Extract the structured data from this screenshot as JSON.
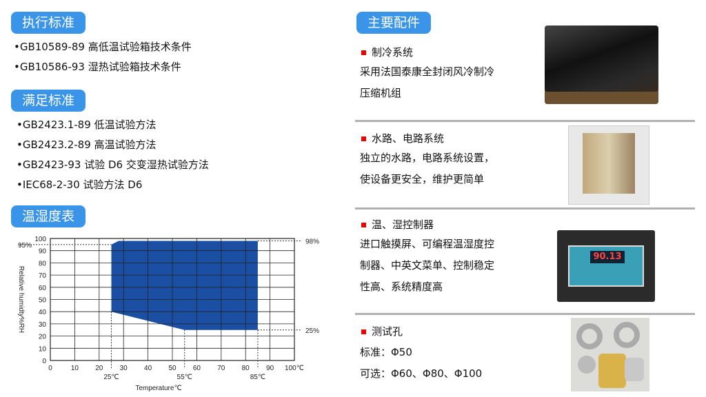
{
  "left": {
    "standard_exec": {
      "title": "执行标准",
      "items": [
        "•GB10589-89 高低温试验箱技术条件",
        "•GB10586-93 湿热试验箱技术条件"
      ]
    },
    "standard_meet": {
      "title": "满足标准",
      "items": [
        "•GB2423.1-89 低温试验方法",
        "•GB2423.2-89 高温试验方法",
        "•GB2423-93 试验 D6 交变湿热试验方法",
        "•IEC68-2-30 试验方法 D6"
      ]
    },
    "chart_section": {
      "title": "温湿度表"
    }
  },
  "right": {
    "title": "主要配件",
    "sections": [
      {
        "heading": "制冷系统",
        "lines": [
          "采用法国泰康全封闭风冷制冷",
          "压缩机组"
        ],
        "image": "compressor-unit-photo"
      },
      {
        "heading": "水路、电路系统",
        "lines": [
          "独立的水路，电路系统设置，",
          "使设备更安全，维护更简单"
        ],
        "image": "circuit-panel-photo"
      },
      {
        "heading": "温、湿控制器",
        "lines": [
          "进口触摸屏、可编程温湿度控",
          "制器、中英文菜单、控制稳定",
          "性高、系统精度高"
        ],
        "image": "touch-controller-photo",
        "screen_value": "90.13"
      },
      {
        "heading": "测试孔",
        "lines": [
          "标准：Φ50",
          "可选：Φ60、Φ80、Φ100"
        ],
        "image": "test-port-photo"
      }
    ],
    "colors": {
      "accent": "#3a95e8",
      "bullet": "#ee0000"
    }
  },
  "chart_data": {
    "type": "area",
    "xlabel": "Temperature℃",
    "ylabel": "Relative humidty%RH",
    "xlim": [
      0,
      100
    ],
    "ylim": [
      0,
      100
    ],
    "x_ticks": [
      "0",
      "10",
      "20",
      "30",
      "40",
      "50",
      "60",
      "70",
      "80",
      "90",
      "100℃"
    ],
    "y_ticks": [
      "0",
      "10",
      "20",
      "30",
      "40",
      "50",
      "60",
      "70",
      "80",
      "90",
      "100"
    ],
    "grid": true,
    "fill_color": "#1a4fa3",
    "region": [
      [
        25,
        40
      ],
      [
        25,
        95
      ],
      [
        28,
        98
      ],
      [
        85,
        98
      ],
      [
        85,
        25
      ],
      [
        55,
        25
      ]
    ],
    "annotations": {
      "x": [
        {
          "value": 25,
          "label": "25℃"
        },
        {
          "value": 55,
          "label": "55℃"
        },
        {
          "value": 85,
          "label": "85℃"
        }
      ],
      "y_left": [
        {
          "value": 95,
          "label": "95%"
        }
      ],
      "y_right": [
        {
          "value": 98,
          "label": "98%"
        },
        {
          "value": 25,
          "label": "25%"
        }
      ]
    }
  }
}
